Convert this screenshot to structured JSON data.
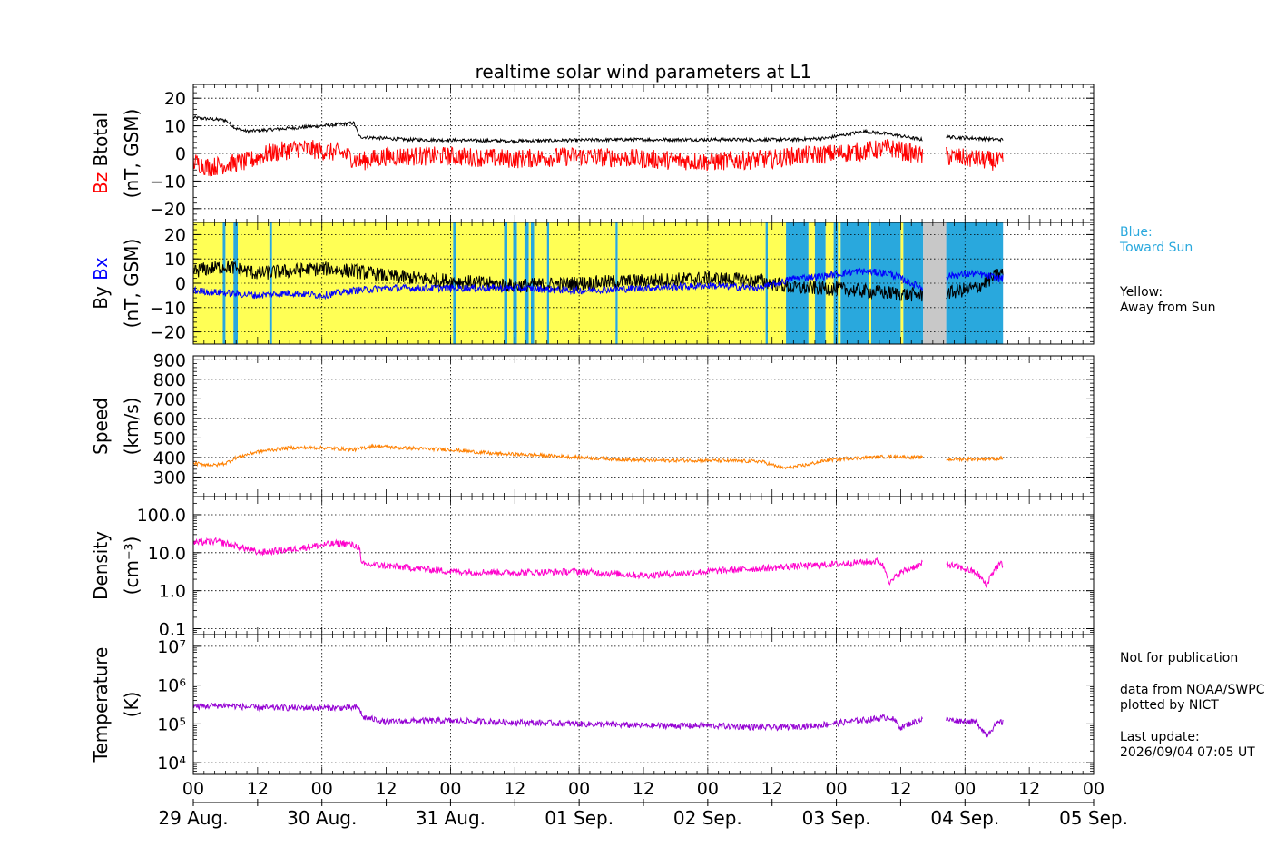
{
  "chart_data": {
    "type": "line",
    "title": "realtime solar wind parameters at L1",
    "x_tick_labels": [
      "00",
      "12",
      "00",
      "12",
      "00",
      "12",
      "00",
      "12",
      "00",
      "12",
      "00",
      "12",
      "00",
      "12",
      "00"
    ],
    "x_date_labels": [
      "29 Aug.",
      "30 Aug.",
      "31 Aug.",
      "01 Sep.",
      "02 Sep.",
      "03 Sep.",
      "04 Sep.",
      "05 Sep."
    ],
    "x_range_hours": [
      0,
      168
    ],
    "data_end_hour": 151.1,
    "data_gap_hours": [
      136.2,
      140.5
    ],
    "grid": true,
    "panels": [
      {
        "name": "magnetic-field",
        "ylabel_main": [
          "Bz",
          "Btotal"
        ],
        "ylabel_unit": "(nT, GSM)",
        "ylim": [
          -25,
          25
        ],
        "yticks": [
          -20,
          -10,
          0,
          10,
          20
        ],
        "ytick_labels": [
          "−20",
          "−10",
          "0",
          "10",
          "20"
        ],
        "series": [
          {
            "name": "Btotal",
            "color": "#000000",
            "x": [
              0,
              6,
              8,
              10,
              24,
              30,
              31,
              40,
              60,
              80,
              100,
              112,
              118,
              125,
              130,
              136,
              140.5,
              150.5
            ],
            "y": [
              13,
              12,
              9,
              8,
              10,
              11,
              6,
              5,
              4.5,
              5,
              5,
              5,
              5.5,
              8,
              7,
              5,
              6,
              5
            ]
          },
          {
            "name": "Bz",
            "color": "#ff0000",
            "x": [
              0,
              3,
              6,
              10,
              14,
              20,
              24,
              28,
              31,
              36,
              48,
              60,
              72,
              84,
              96,
              108,
              112,
              120,
              126,
              130,
              136,
              140.5,
              150.5
            ],
            "y": [
              -3,
              -5,
              -4,
              -3,
              0,
              2,
              1,
              0,
              -3,
              -1,
              -1,
              -2,
              -1,
              -2,
              -3,
              -2,
              -1,
              0,
              1,
              2,
              -1,
              -1,
              -3
            ]
          }
        ]
      },
      {
        "name": "imf-components",
        "ylabel_main": [
          "By",
          "Bx"
        ],
        "ylabel_unit": "(nT, GSM)",
        "ylim": [
          -25,
          25
        ],
        "yticks": [
          -20,
          -10,
          0,
          10,
          20
        ],
        "ytick_labels": [
          "−20",
          "−10",
          "0",
          "10",
          "20"
        ],
        "sector_legend": {
          "toward": "Blue:\nToward Sun",
          "away": "Yellow:\nAway from Sun"
        },
        "sector_colors": {
          "away": "#ffff55",
          "toward": "#29a8dd",
          "missing": "#c8c8c8"
        },
        "sectors": [
          {
            "from": 0,
            "to": 5.5,
            "state": "away"
          },
          {
            "from": 5.5,
            "to": 6.0,
            "state": "toward"
          },
          {
            "from": 6.0,
            "to": 7.5,
            "state": "away"
          },
          {
            "from": 7.5,
            "to": 8.3,
            "state": "toward"
          },
          {
            "from": 8.3,
            "to": 14.2,
            "state": "away"
          },
          {
            "from": 14.2,
            "to": 14.7,
            "state": "toward"
          },
          {
            "from": 14.7,
            "to": 48.5,
            "state": "away"
          },
          {
            "from": 48.5,
            "to": 49.0,
            "state": "toward"
          },
          {
            "from": 49.0,
            "to": 58.0,
            "state": "away"
          },
          {
            "from": 58.0,
            "to": 58.6,
            "state": "toward"
          },
          {
            "from": 58.6,
            "to": 59.7,
            "state": "away"
          },
          {
            "from": 59.7,
            "to": 60.4,
            "state": "toward"
          },
          {
            "from": 60.4,
            "to": 61.8,
            "state": "away"
          },
          {
            "from": 61.8,
            "to": 62.6,
            "state": "toward"
          },
          {
            "from": 62.6,
            "to": 63.0,
            "state": "away"
          },
          {
            "from": 63.0,
            "to": 63.6,
            "state": "toward"
          },
          {
            "from": 63.6,
            "to": 66.0,
            "state": "away"
          },
          {
            "from": 66.0,
            "to": 66.4,
            "state": "toward"
          },
          {
            "from": 66.4,
            "to": 78.8,
            "state": "away"
          },
          {
            "from": 78.8,
            "to": 79.2,
            "state": "toward"
          },
          {
            "from": 79.2,
            "to": 106.8,
            "state": "away"
          },
          {
            "from": 106.8,
            "to": 107.2,
            "state": "toward"
          },
          {
            "from": 107.2,
            "to": 110.6,
            "state": "away"
          },
          {
            "from": 110.6,
            "to": 114.8,
            "state": "toward"
          },
          {
            "from": 114.8,
            "to": 116.0,
            "state": "away"
          },
          {
            "from": 116.0,
            "to": 118.0,
            "state": "toward"
          },
          {
            "from": 118.0,
            "to": 119.5,
            "state": "away"
          },
          {
            "from": 119.5,
            "to": 120.3,
            "state": "toward"
          },
          {
            "from": 120.3,
            "to": 120.8,
            "state": "away"
          },
          {
            "from": 120.8,
            "to": 126.0,
            "state": "toward"
          },
          {
            "from": 126.0,
            "to": 126.5,
            "state": "away"
          },
          {
            "from": 126.5,
            "to": 132.0,
            "state": "toward"
          },
          {
            "from": 132.0,
            "to": 132.5,
            "state": "away"
          },
          {
            "from": 132.5,
            "to": 136.2,
            "state": "toward"
          },
          {
            "from": 136.2,
            "to": 140.5,
            "state": "missing"
          },
          {
            "from": 140.5,
            "to": 151.1,
            "state": "toward"
          }
        ],
        "series": [
          {
            "name": "By",
            "color": "#000000",
            "x": [
              0,
              6,
              12,
              18,
              24,
              30,
              36,
              48,
              60,
              72,
              84,
              96,
              106,
              112,
              118,
              124,
              130,
              136,
              140.5,
              146,
              150.5
            ],
            "y": [
              5,
              7,
              4,
              5,
              6,
              5,
              3,
              1,
              -1,
              0,
              1,
              2,
              1,
              -2,
              -2,
              -3,
              -4,
              -5,
              -4,
              -2,
              4
            ]
          },
          {
            "name": "Bx",
            "color": "#0000ff",
            "x": [
              0,
              6,
              12,
              18,
              24,
              30,
              36,
              48,
              60,
              72,
              84,
              96,
              106,
              112,
              118,
              124,
              130,
              136,
              140.5,
              146,
              150.5
            ],
            "y": [
              -3,
              -4,
              -5,
              -4,
              -5,
              -3,
              -2,
              -2,
              -2,
              -3,
              -2,
              -1,
              -2,
              2,
              3,
              5,
              4,
              -2,
              3,
              4,
              2
            ]
          }
        ]
      },
      {
        "name": "speed",
        "ylabel_main": [
          "Speed"
        ],
        "ylabel_unit": "(km/s)",
        "ylim": [
          200,
          920
        ],
        "yticks": [
          300,
          400,
          500,
          600,
          700,
          800,
          900
        ],
        "ytick_labels": [
          "300",
          "400",
          "500",
          "600",
          "700",
          "800",
          "900"
        ],
        "series": [
          {
            "name": "Speed",
            "color": "#ff8000",
            "x": [
              0,
              4,
              6,
              8,
              12,
              18,
              24,
              30,
              34,
              38,
              48,
              56,
              66,
              72,
              84,
              96,
              106,
              110,
              114,
              118,
              122,
              126,
              130,
              136,
              140.5,
              150.5
            ],
            "y": [
              370,
              360,
              370,
              400,
              430,
              450,
              450,
              440,
              460,
              450,
              440,
              420,
              410,
              400,
              385,
              385,
              380,
              345,
              360,
              385,
              395,
              400,
              405,
              400,
              390,
              395
            ]
          }
        ]
      },
      {
        "name": "density",
        "ylabel_main": [
          "Density"
        ],
        "ylabel_unit": "(cm⁻³)",
        "log": true,
        "ylim": [
          0.07,
          300
        ],
        "yticks": [
          0.1,
          1.0,
          10.0,
          100.0
        ],
        "ytick_labels": [
          "0.1",
          "1.0",
          "10.0",
          "100.0"
        ],
        "series": [
          {
            "name": "Density",
            "color": "#ff00cc",
            "x": [
              0,
              4,
              8,
              12,
              18,
              24,
              28,
              31,
              31.3,
              36,
              48,
              60,
              72,
              84,
              90,
              96,
              108,
              120,
              128,
              130,
              132,
              136,
              140.5,
              146,
              148,
              150.5
            ],
            "y": [
              18,
              20,
              15,
              10,
              12,
              16,
              18,
              14,
              5,
              4.5,
              3.2,
              3.0,
              3.2,
              2.5,
              2.8,
              3.2,
              4,
              5,
              6,
              1.5,
              3,
              5,
              5,
              3,
              1.3,
              5
            ]
          }
        ]
      },
      {
        "name": "temperature",
        "ylabel_main": [
          "Temperature"
        ],
        "ylabel_unit": "(K)",
        "log": true,
        "ylim": [
          5000,
          20000000
        ],
        "yticks": [
          10000,
          100000,
          1000000,
          10000000
        ],
        "ytick_labels": [
          "10⁴",
          "10⁵",
          "10⁶",
          "10⁷"
        ],
        "series": [
          {
            "name": "Temperature",
            "color": "#9400d3",
            "x": [
              0,
              6,
              12,
              24,
              31,
              31.5,
              36,
              42,
              48,
              60,
              72,
              84,
              96,
              108,
              116,
              124,
              130,
              132,
              136,
              140.5,
              146,
              148,
              150.5
            ],
            "y": [
              280000,
              300000,
              260000,
              260000,
              260000,
              150000,
              110000,
              120000,
              120000,
              110000,
              100000,
              90000,
              90000,
              80000,
              90000,
              120000,
              150000,
              80000,
              130000,
              130000,
              110000,
              50000,
              110000
            ]
          }
        ]
      }
    ]
  },
  "annotations": {
    "legend_blue": "Blue:\nToward Sun",
    "legend_yellow": "Yellow:\nAway from Sun",
    "not_for_publication": "Not for publication",
    "credit": "data from NOAA/SWPC\nplotted by NICT",
    "last_update": "Last update:\n2026/09/04 07:05 UT"
  }
}
